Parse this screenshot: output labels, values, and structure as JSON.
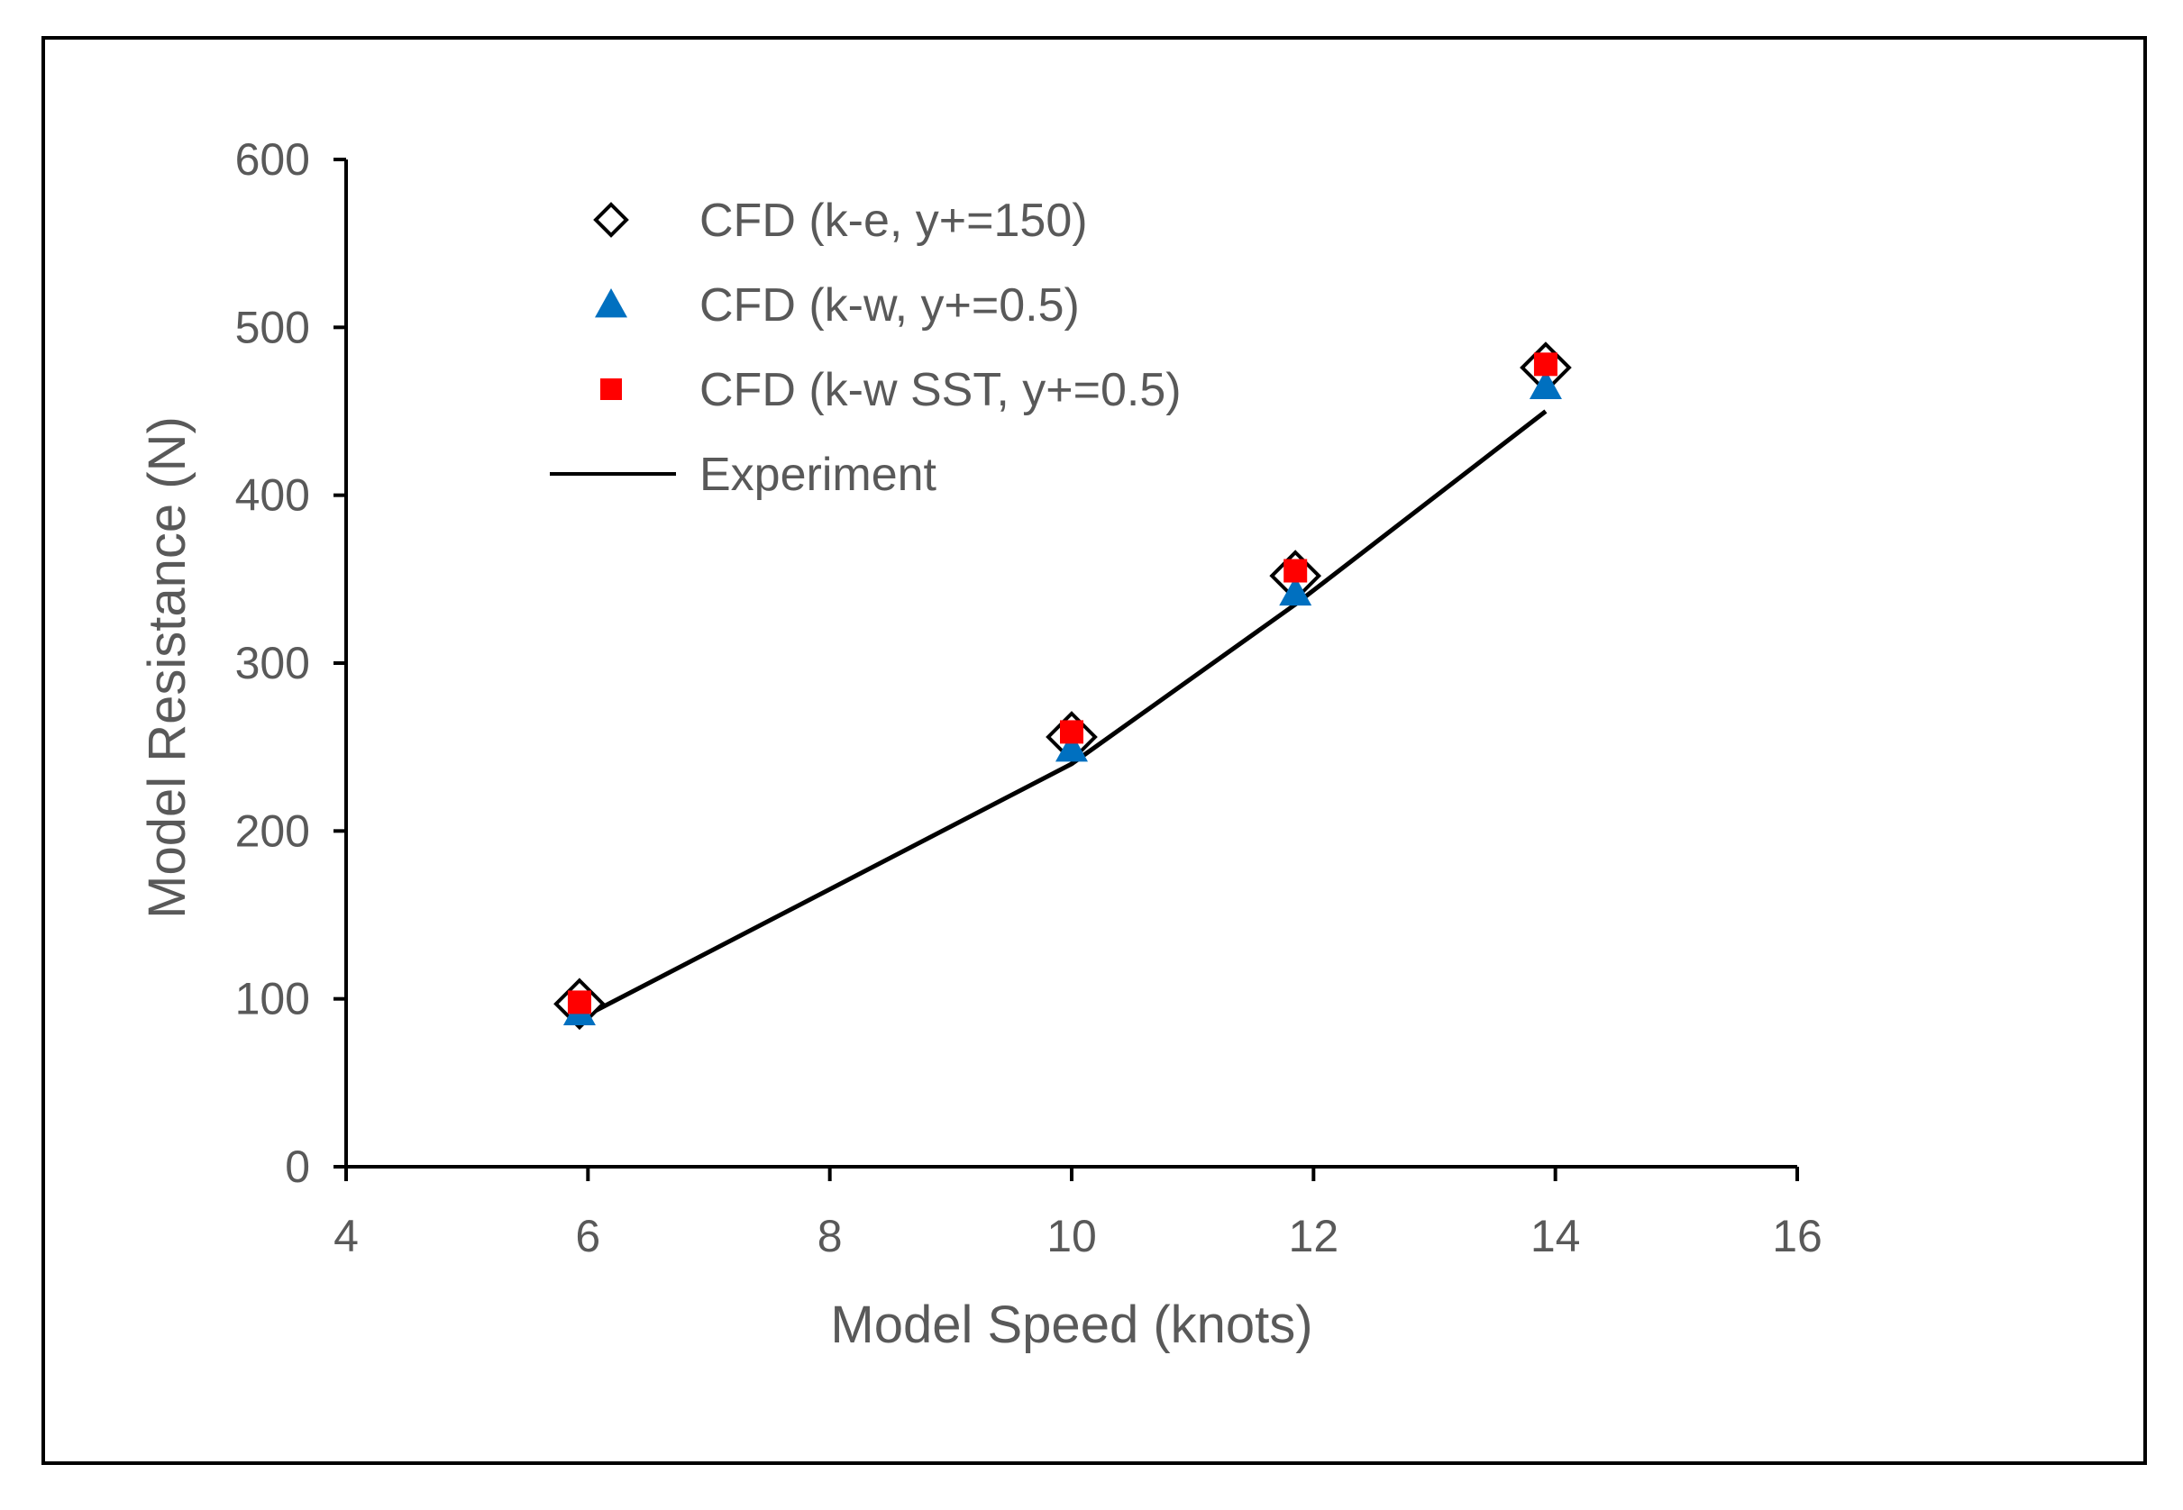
{
  "chart_data": {
    "type": "scatter",
    "title": "",
    "xlabel": "Model Speed (knots)",
    "ylabel": "Model Resistance (N)",
    "xlim": [
      4,
      16
    ],
    "ylim": [
      0,
      600
    ],
    "xticks": [
      4,
      6,
      8,
      10,
      12,
      14,
      16
    ],
    "yticks": [
      0,
      100,
      200,
      300,
      400,
      500,
      600
    ],
    "grid": false,
    "legend_position": "top-left",
    "series": [
      {
        "name": "CFD (k-e, y+=150)",
        "marker": "diamond-open",
        "color": "#000000",
        "x": [
          5.93,
          10.0,
          11.85,
          13.92
        ],
        "y": [
          97,
          256,
          352,
          476
        ]
      },
      {
        "name": "CFD (k-w, y+=0.5)",
        "marker": "triangle",
        "color": "#0070C0",
        "x": [
          5.93,
          10.0,
          11.85,
          13.92
        ],
        "y": [
          92,
          249,
          342,
          465
        ]
      },
      {
        "name": "CFD (k-w SST, y+=0.5)",
        "marker": "square",
        "color": "#FF0000",
        "x": [
          5.93,
          10.0,
          11.85,
          13.92
        ],
        "y": [
          98,
          259,
          355,
          478
        ]
      },
      {
        "name": "Experiment",
        "marker": "line",
        "color": "#000000",
        "x": [
          5.93,
          10.0,
          11.85,
          13.92
        ],
        "y": [
          88,
          240,
          335,
          450
        ]
      }
    ]
  }
}
